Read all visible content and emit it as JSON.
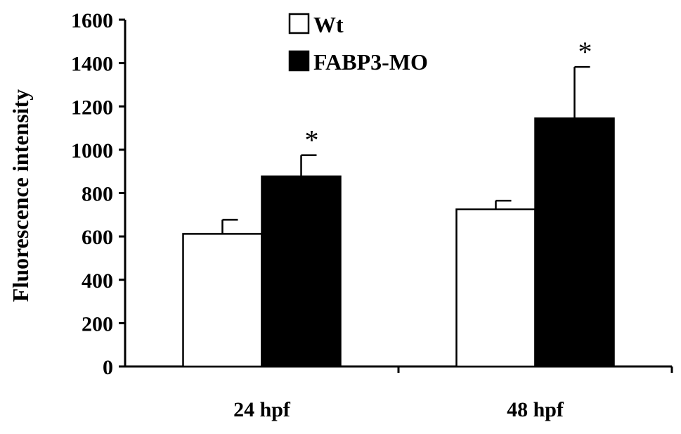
{
  "chart_data": {
    "type": "bar",
    "categories": [
      "24 hpf",
      "48 hpf"
    ],
    "series": [
      {
        "name": "Wt",
        "values": [
          612,
          725
        ],
        "errors": [
          65,
          40
        ],
        "color": "#ffffff",
        "stroke": "#000000"
      },
      {
        "name": "FABP3-MO",
        "values": [
          877,
          1145
        ],
        "errors": [
          98,
          237
        ],
        "color": "#000000",
        "stroke": "#000000"
      }
    ],
    "significance": [
      {
        "category": "24 hpf",
        "series": "FABP3-MO",
        "label": "*"
      },
      {
        "category": "48 hpf",
        "series": "FABP3-MO",
        "label": "*"
      }
    ],
    "title": "",
    "xlabel": "",
    "ylabel": "Fluorescence intensity",
    "ylim": [
      0,
      1600
    ],
    "yticks": [
      0,
      200,
      400,
      600,
      800,
      1000,
      1200,
      1400,
      1600
    ],
    "grid": false,
    "legend": "top-center"
  }
}
